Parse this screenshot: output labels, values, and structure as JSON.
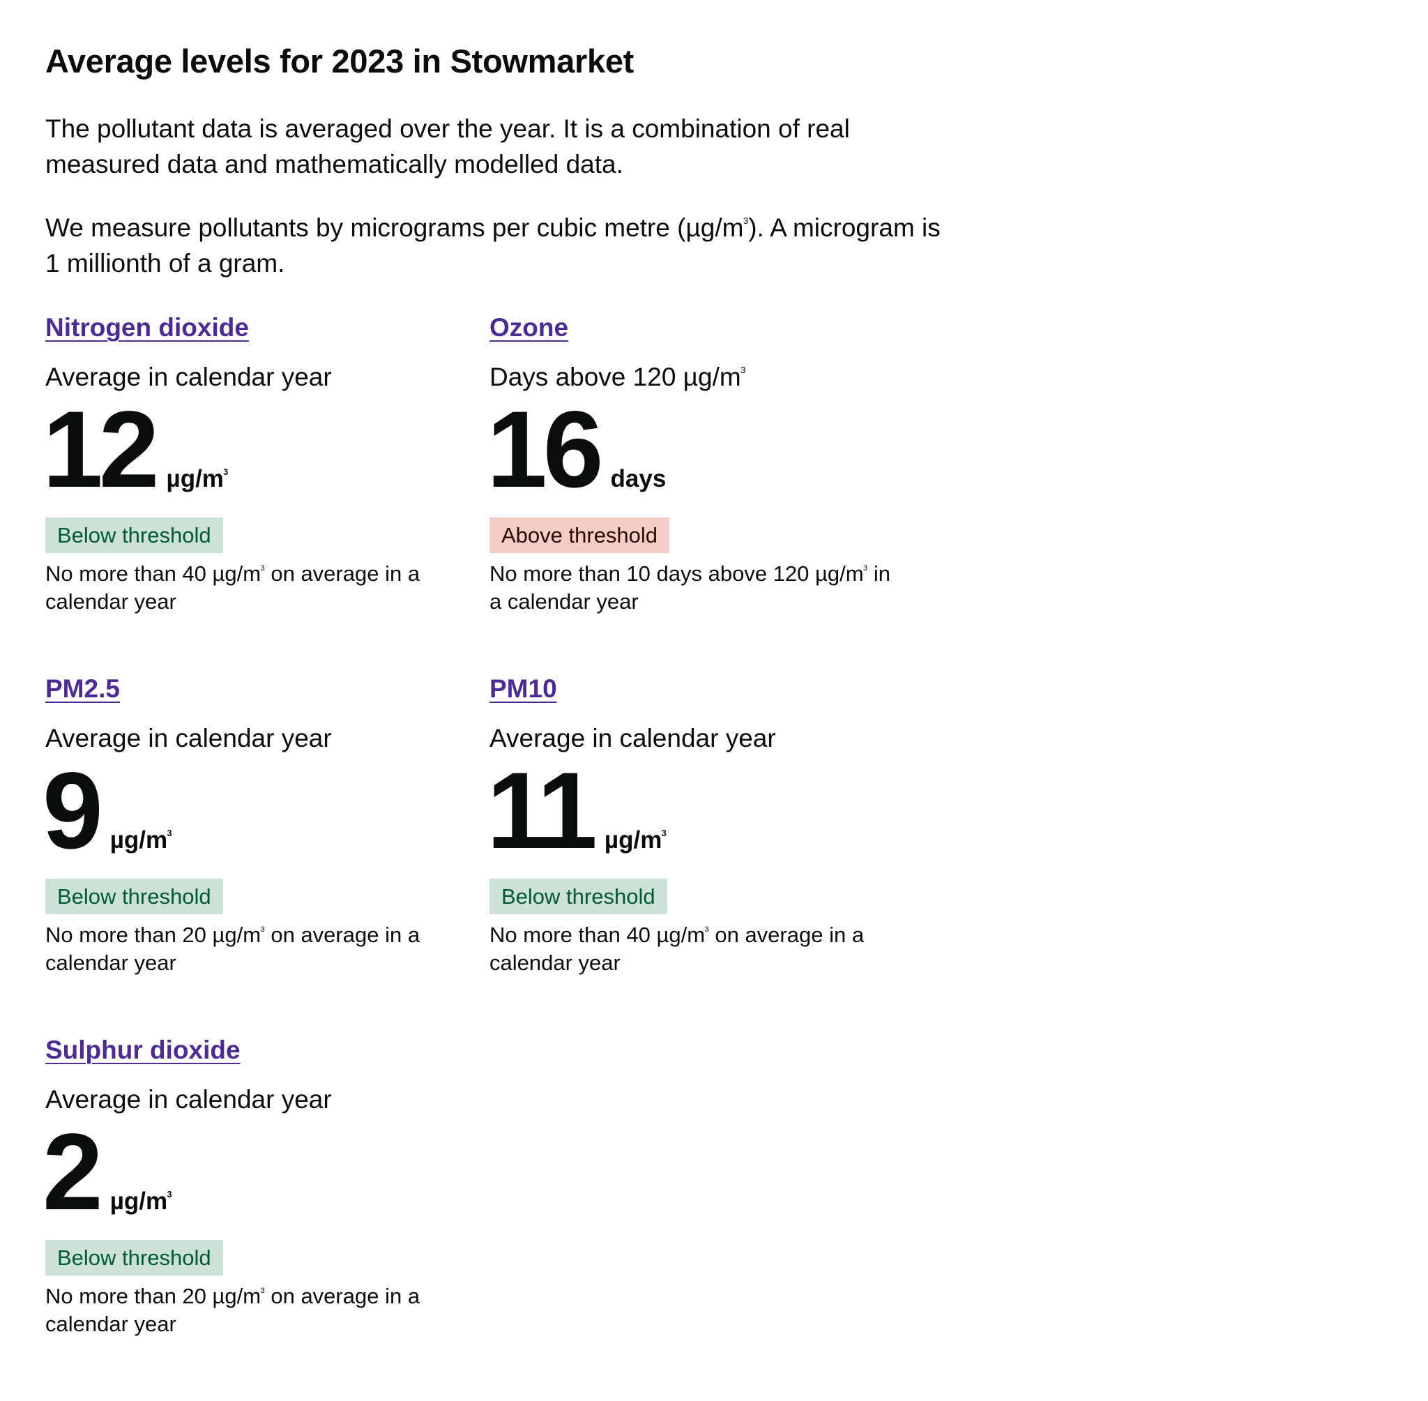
{
  "page": {
    "title": "Average levels for 2023 in Stowmarket",
    "intro_paragraph_1": "The pollutant data is averaged over the year. It is a combination of real measured data and mathematically modelled data.",
    "intro_paragraph_2_before": "We measure pollutants by micrograms per cubic metre (µg/m",
    "intro_paragraph_2_sup": "3",
    "intro_paragraph_2_after": "). A microgram is 1 millionth of a gram."
  },
  "pollutants": [
    {
      "name": "Nitrogen dioxide",
      "measure_prefix": "Average in calendar year",
      "measure_sup": "",
      "value": "12",
      "unit": "µg/m",
      "unit_sup": "3",
      "status": "Below threshold",
      "status_color": "#005a30",
      "status_background": "#cce2d8",
      "threshold_before": "No more than 40 µg/m",
      "threshold_sup": "3",
      "threshold_after": " on average in a calendar year"
    },
    {
      "name": "Ozone",
      "measure_prefix": "Days above 120 µg/m",
      "measure_sup": "3",
      "value": "16",
      "unit": "days",
      "unit_sup": "",
      "status": "Above threshold",
      "status_color": "#2a0b06",
      "status_background": "#f4cdc6",
      "threshold_before": "No more than 10 days above 120 µg/m",
      "threshold_sup": "3",
      "threshold_after": " in a calendar year"
    },
    {
      "name": "PM2.5",
      "measure_prefix": "Average in calendar year",
      "measure_sup": "",
      "value": "9",
      "unit": "µg/m",
      "unit_sup": "3",
      "status": "Below threshold",
      "status_color": "#005a30",
      "status_background": "#cce2d8",
      "threshold_before": "No more than 20 µg/m",
      "threshold_sup": "3",
      "threshold_after": " on average in a calendar year"
    },
    {
      "name": "PM10",
      "measure_prefix": "Average in calendar year",
      "measure_sup": "",
      "value": "11",
      "unit": "µg/m",
      "unit_sup": "3",
      "status": "Below threshold",
      "status_color": "#005a30",
      "status_background": "#cce2d8",
      "threshold_before": "No more than 40 µg/m",
      "threshold_sup": "3",
      "threshold_after": " on average in a calendar year"
    },
    {
      "name": "Sulphur dioxide",
      "measure_prefix": "Average in calendar year",
      "measure_sup": "",
      "value": "2",
      "unit": "µg/m",
      "unit_sup": "3",
      "status": "Below threshold",
      "status_color": "#005a30",
      "status_background": "#cce2d8",
      "threshold_before": "No more than 20 µg/m",
      "threshold_sup": "3",
      "threshold_after": " on average in a calendar year"
    }
  ],
  "colors": {
    "text": "#0b0c0c",
    "link": "#4c2c92",
    "background": "#ffffff"
  }
}
